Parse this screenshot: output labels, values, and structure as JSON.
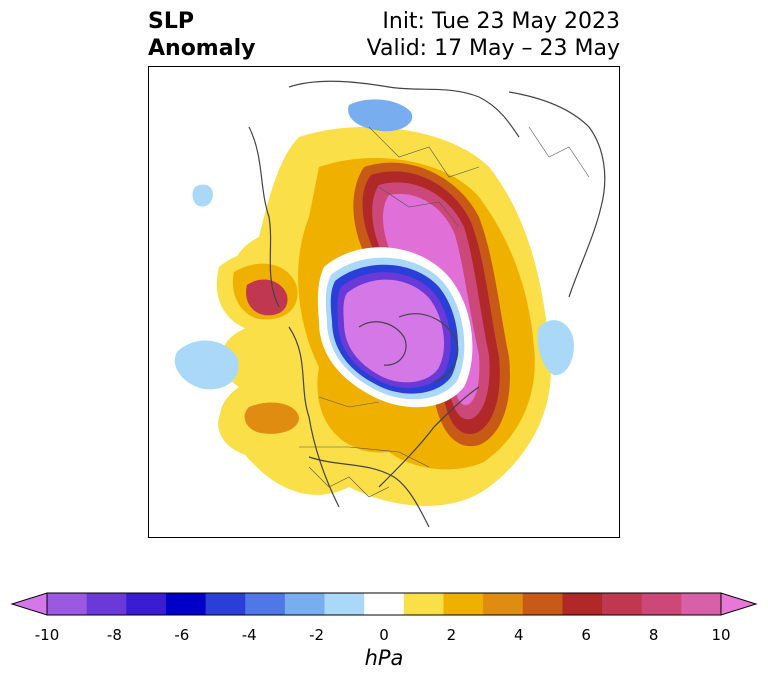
{
  "title": {
    "left_line1": "SLP",
    "left_line2": "Anomaly",
    "right_line1": "Init: Tue 23 May 2023",
    "right_line2": "Valid: 17 May – 23 May"
  },
  "colorbar": {
    "unit": "hPa",
    "ticks": [
      "-10",
      "-8",
      "-6",
      "-4",
      "-2",
      "0",
      "2",
      "4",
      "6",
      "8",
      "10"
    ],
    "colors": [
      "#d478e8",
      "#9b58e0",
      "#6a3ad8",
      "#3a1cd2",
      "#0000c8",
      "#2a3fd8",
      "#4f78e6",
      "#78aef0",
      "#aad8f8",
      "#ffffff",
      "#fadf48",
      "#f0b000",
      "#e08c10",
      "#c85a18",
      "#b02828",
      "#c03850",
      "#cc4878",
      "#d860a8",
      "#e878d8"
    ],
    "extend": "both"
  },
  "map": {
    "projection": "north-polar-stereographic",
    "region": "Northern Hemisphere",
    "features": [
      "coastlines",
      "country-borders",
      "us-state-borders",
      "canada-province-borders"
    ]
  }
}
